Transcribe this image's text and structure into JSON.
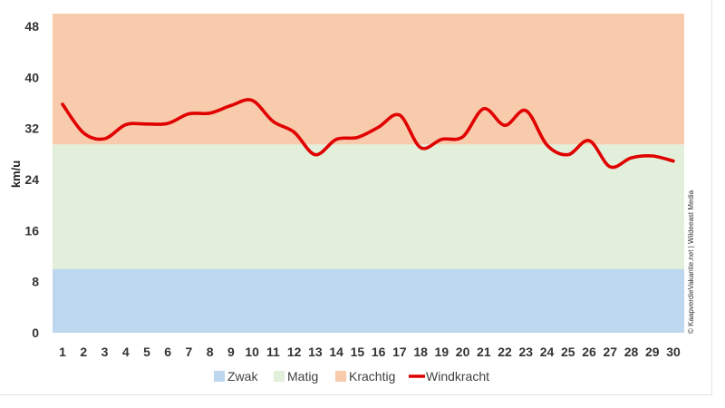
{
  "chart_data": {
    "type": "line",
    "xlabel": "",
    "ylabel": "km/u",
    "x": [
      1,
      2,
      3,
      4,
      5,
      6,
      7,
      8,
      9,
      10,
      11,
      12,
      13,
      14,
      15,
      16,
      17,
      18,
      19,
      20,
      21,
      22,
      23,
      24,
      25,
      26,
      27,
      28,
      29,
      30
    ],
    "yticks": [
      0,
      8,
      16,
      24,
      32,
      40,
      48
    ],
    "ylim": [
      0,
      50
    ],
    "bands": [
      {
        "name": "Zwak",
        "from": 0,
        "to": 10,
        "color": "#bdd7ee"
      },
      {
        "name": "Matig",
        "from": 10,
        "to": 29.5,
        "color": "#e2efda"
      },
      {
        "name": "Krachtig",
        "from": 29.5,
        "to": 50,
        "color": "#f8cbad"
      }
    ],
    "series": [
      {
        "name": "Windkracht",
        "color": "#e00000",
        "values": [
          35.8,
          31.3,
          30.4,
          32.6,
          32.7,
          32.8,
          34.3,
          34.4,
          35.6,
          36.4,
          33.1,
          31.4,
          27.9,
          30.3,
          30.6,
          32.2,
          34.1,
          29.0,
          30.3,
          30.7,
          35.1,
          32.5,
          34.8,
          29.4,
          27.9,
          30.1,
          26.0,
          27.4,
          27.7,
          26.9
        ]
      }
    ],
    "legend": {
      "position": "bottom",
      "entries": [
        "Zwak",
        "Matig",
        "Krachtig",
        "Windkracht"
      ]
    },
    "grid": false
  },
  "credit": "© KaapverdieVakantie.net | Wildeeast Media"
}
